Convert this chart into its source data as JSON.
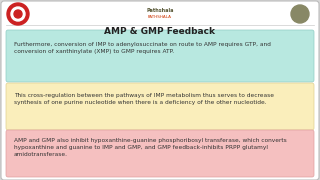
{
  "title": "AMP & GMP Feedback",
  "outer_bg": "#d8d8d8",
  "main_bg": "#ffffff",
  "header_bg": "#f0f0f0",
  "box1_text": "Furthermore, conversion of IMP to adenylosuccinate on route to AMP requires GTP, and\nconversion of xanthinylate (XMP) to GMP requires ATP.",
  "box1_color": "#b8e8e0",
  "box1_edge": "#90ccc4",
  "box2_text": "This cross-regulation between the pathways of IMP metabolism thus serves to decrease\nsynthesis of one purine nucleotide when there is a deficiency of the other nucleotide.",
  "box2_color": "#faeebb",
  "box2_edge": "#e0d090",
  "box3_text": "AMP and GMP also inhibit hypoxanthine-guanine phosphoribosyl transferase, which converts\nhypoxanthine and guanine to IMP and GMP, and GMP feedback-inhibits PRPP glutamyl\namidotransferase.",
  "box3_color": "#f5c0c0",
  "box3_edge": "#e0a0a0",
  "title_fontsize": 6.5,
  "body_fontsize": 4.2,
  "title_color": "#222222",
  "text_color": "#333333",
  "logo_left_color": "#cc2222",
  "logo_right_color": "#888866"
}
